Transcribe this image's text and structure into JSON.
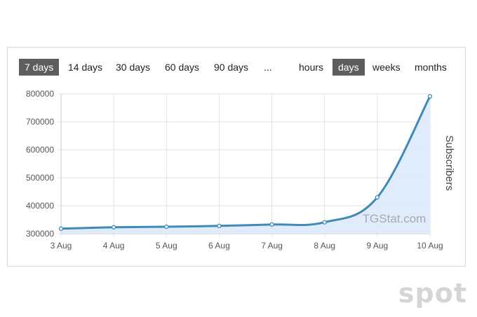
{
  "period_buttons": [
    {
      "label": "7 days",
      "active": true
    },
    {
      "label": "14 days",
      "active": false
    },
    {
      "label": "30 days",
      "active": false
    },
    {
      "label": "60 days",
      "active": false
    },
    {
      "label": "90 days",
      "active": false
    },
    {
      "label": "...",
      "active": false
    }
  ],
  "granularity_buttons": [
    {
      "label": "hours",
      "active": false
    },
    {
      "label": "days",
      "active": true
    },
    {
      "label": "weeks",
      "active": false
    },
    {
      "label": "months",
      "active": false
    }
  ],
  "watermark": "TGStat.com",
  "brand": "spot",
  "colors": {
    "line": "#3f8ab7",
    "fill": "#dde9fc",
    "grid": "#e3e3e3",
    "active_button": "#5d5d5d"
  },
  "chart_data": {
    "type": "area",
    "x": [
      "3 Aug",
      "4 Aug",
      "5 Aug",
      "6 Aug",
      "7 Aug",
      "8 Aug",
      "9 Aug",
      "10 Aug"
    ],
    "series": [
      {
        "values": [
          318000,
          323000,
          325000,
          328000,
          333000,
          341000,
          430000,
          791000
        ]
      }
    ],
    "ylabel": "Subscribers",
    "yticks": [
      300000,
      400000,
      500000,
      600000,
      700000,
      800000
    ],
    "ylim": [
      300000,
      800000
    ],
    "grid": true
  }
}
